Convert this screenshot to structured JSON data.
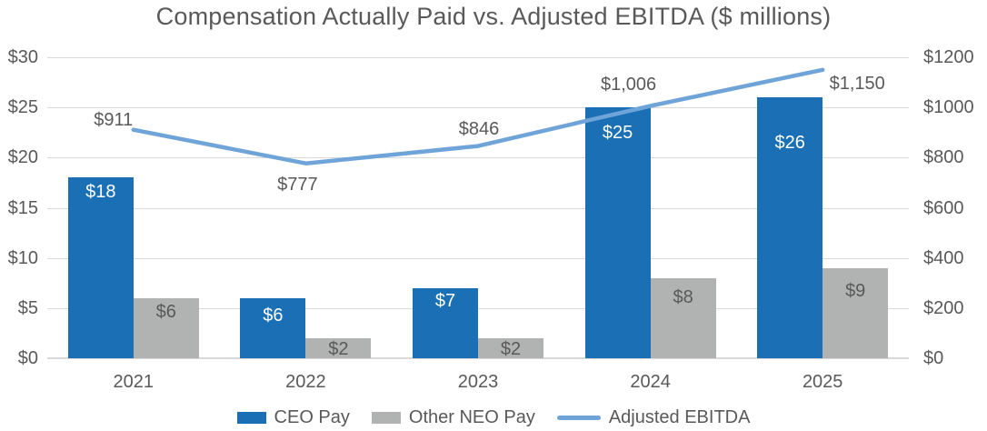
{
  "title": "Compensation Actually Paid vs. Adjusted EBITDA ($ millions)",
  "chart_data": {
    "type": "combo-bar-line",
    "title": "Compensation Actually Paid vs. Adjusted EBITDA ($ millions)",
    "categories": [
      "2021",
      "2022",
      "2023",
      "2024",
      "2025"
    ],
    "series": [
      {
        "name": "CEO Pay",
        "type": "bar",
        "axis": "left",
        "color": "#1A6FB5",
        "label_color": "#ffffff",
        "values": [
          18,
          6,
          7,
          25,
          26
        ],
        "labels": [
          "$18",
          "$6",
          "$7",
          "$25",
          "$26"
        ]
      },
      {
        "name": "Other NEO Pay",
        "type": "bar",
        "axis": "left",
        "color": "#B1B2B2",
        "label_color": "#595959",
        "values": [
          6,
          2,
          2,
          8,
          9
        ],
        "labels": [
          "$6",
          "$2",
          "$2",
          "$8",
          "$9"
        ]
      },
      {
        "name": "Adjusted EBITDA",
        "type": "line",
        "axis": "right",
        "color": "#6FA4D9",
        "label_color": "#595959",
        "values": [
          911,
          777,
          846,
          1006,
          1150
        ],
        "labels": [
          "$911",
          "$777",
          "$846",
          "$1,006",
          "$1,150"
        ]
      }
    ],
    "left_axis": {
      "min": 0,
      "max": 30,
      "step": 5,
      "tick_labels": [
        "$0",
        "$5",
        "$10",
        "$15",
        "$20",
        "$25",
        "$30"
      ]
    },
    "right_axis": {
      "min": 0,
      "max": 1200,
      "step": 200,
      "tick_labels": [
        "$0",
        "$200",
        "$400",
        "$600",
        "$800",
        "$1000",
        "$1200"
      ]
    },
    "grid": true,
    "legend_position": "bottom",
    "text_color": "#595959",
    "gridline_color": "#D9D9D9"
  }
}
